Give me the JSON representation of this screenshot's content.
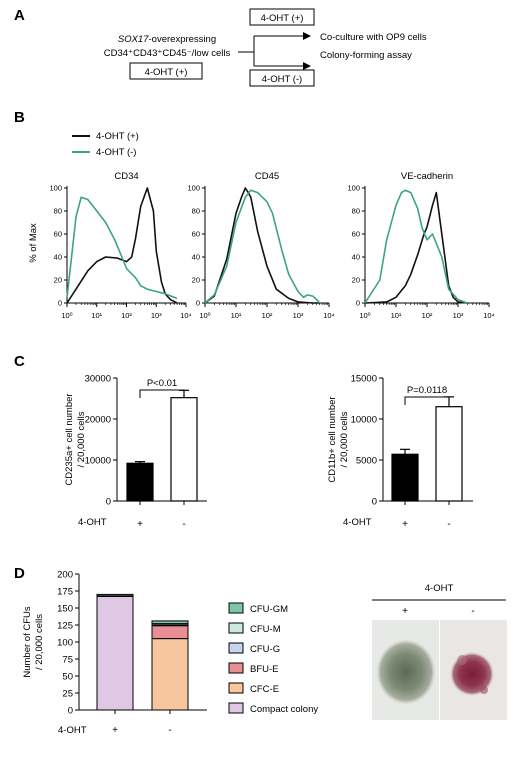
{
  "colors": {
    "plus": "#111111",
    "minus": "#3aa388"
  },
  "panelA": {
    "label": "A",
    "cells_italic": "SOX17",
    "cells_rest": "-overexpressing",
    "cells_line2": "CD34⁺CD43⁺CD45⁻/low cells",
    "box_left": "4-OHT (+)",
    "box_top": "4-OHT (+)",
    "box_bottom": "4-OHT (-)",
    "outcome_1": "Co-culture with OP9 cells",
    "outcome_2": "Colony-forming assay"
  },
  "panelB": {
    "label": "B",
    "legend": [
      {
        "name": "4-OHT (+)",
        "color": "#111111"
      },
      {
        "name": "4-OHT (-)",
        "color": "#3aa388"
      }
    ],
    "ylabel": "% of Max",
    "y_ticks": [
      "0",
      "20",
      "40",
      "60",
      "80",
      "100"
    ],
    "x_ticks": [
      "10⁰",
      "10¹",
      "10²",
      "10³",
      "10⁴"
    ]
  },
  "panelC": {
    "label": "C",
    "group_label": "4-OHT"
  },
  "panelD": {
    "label": "D",
    "group_label": "4-OHT",
    "micro_header": "4-OHT",
    "micro_plus": "+",
    "micro_minus": "-"
  },
  "chart_data": [
    {
      "type": "line",
      "title": "CD34",
      "x_scale": "log",
      "xlim": [
        1,
        10000
      ],
      "ylim": [
        0,
        100
      ],
      "series": [
        {
          "name": "4-OHT (+)",
          "x": [
            1,
            2,
            5,
            10,
            20,
            50,
            100,
            150,
            200,
            300,
            500,
            800,
            1000,
            1500,
            2000,
            3000,
            5000
          ],
          "y": [
            0,
            12,
            28,
            36,
            40,
            39,
            36,
            40,
            56,
            84,
            100,
            80,
            45,
            18,
            8,
            3,
            0
          ]
        },
        {
          "name": "4-OHT (-)",
          "x": [
            1,
            1.5,
            2,
            3,
            5,
            10,
            20,
            40,
            70,
            100,
            200,
            300,
            500,
            1000,
            2000,
            5000
          ],
          "y": [
            5,
            45,
            75,
            92,
            90,
            80,
            70,
            55,
            40,
            30,
            22,
            15,
            12,
            10,
            8,
            4
          ]
        }
      ]
    },
    {
      "type": "line",
      "title": "CD45",
      "x_scale": "log",
      "xlim": [
        1,
        10000
      ],
      "ylim": [
        0,
        100
      ],
      "series": [
        {
          "name": "4-OHT (+)",
          "x": [
            1,
            2,
            5,
            10,
            15,
            20,
            25,
            30,
            50,
            100,
            200,
            500,
            1000,
            3000,
            5000
          ],
          "y": [
            0,
            6,
            38,
            78,
            92,
            100,
            96,
            92,
            62,
            32,
            12,
            4,
            1,
            0,
            0
          ]
        },
        {
          "name": "4-OHT (-)",
          "x": [
            1,
            2,
            5,
            10,
            20,
            30,
            50,
            100,
            150,
            300,
            500,
            1000,
            1500,
            2000,
            3000,
            4000,
            5000
          ],
          "y": [
            0,
            7,
            32,
            70,
            92,
            98,
            96,
            88,
            78,
            46,
            25,
            10,
            5,
            7,
            6,
            3,
            0
          ]
        }
      ]
    },
    {
      "type": "line",
      "title": "VE-cadherin",
      "x_scale": "log",
      "xlim": [
        1,
        10000
      ],
      "ylim": [
        0,
        100
      ],
      "series": [
        {
          "name": "4-OHT (+)",
          "x": [
            1,
            5,
            10,
            20,
            30,
            50,
            80,
            100,
            150,
            200,
            300,
            500,
            700,
            1000,
            2000
          ],
          "y": [
            0,
            1,
            5,
            15,
            25,
            42,
            60,
            66,
            85,
            96,
            60,
            15,
            5,
            1,
            0
          ]
        },
        {
          "name": "4-OHT (-)",
          "x": [
            1,
            3,
            5,
            10,
            15,
            20,
            30,
            50,
            70,
            100,
            150,
            300,
            500,
            1000,
            2000
          ],
          "y": [
            0,
            20,
            55,
            85,
            96,
            98,
            96,
            82,
            65,
            55,
            60,
            40,
            12,
            3,
            0
          ]
        }
      ]
    },
    {
      "type": "bar",
      "categories": [
        "+",
        "-"
      ],
      "values": [
        9200,
        25200
      ],
      "errors": [
        400,
        1800
      ],
      "ylabel": "CD235a+ cell number / 20,000 cells",
      "ylim": [
        0,
        30000
      ],
      "y_ticks": [
        0,
        10000,
        20000,
        30000
      ],
      "significance": "P<0.01"
    },
    {
      "type": "bar",
      "categories": [
        "+",
        "-"
      ],
      "values": [
        5700,
        11500
      ],
      "errors": [
        600,
        1200
      ],
      "ylabel": "CD11b+ cell number / 20,000 cells",
      "ylim": [
        0,
        15000
      ],
      "y_ticks": [
        0,
        5000,
        10000,
        15000
      ],
      "significance": "P=0.0118"
    },
    {
      "type": "bar",
      "stacked": true,
      "categories": [
        "+",
        "-"
      ],
      "ylabel": "Number of CFUs / 20,000 cells",
      "ylim": [
        0,
        200
      ],
      "y_ticks": [
        0,
        25,
        50,
        75,
        100,
        125,
        150,
        175,
        200
      ],
      "series": [
        {
          "name": "Compact colony",
          "color": "#dec8e4",
          "values": [
            167,
            0
          ]
        },
        {
          "name": "CFC-E",
          "color": "#f6c6a0",
          "values": [
            0,
            105
          ]
        },
        {
          "name": "BFU-E",
          "color": "#e78f95",
          "values": [
            0,
            19
          ]
        },
        {
          "name": "CFU-G",
          "color": "#c5d5ee",
          "values": [
            1,
            1
          ]
        },
        {
          "name": "CFU-M",
          "color": "#cde8dc",
          "values": [
            2,
            2
          ]
        },
        {
          "name": "CFU-GM",
          "color": "#7cc8a6",
          "values": [
            0,
            4
          ]
        }
      ]
    }
  ]
}
